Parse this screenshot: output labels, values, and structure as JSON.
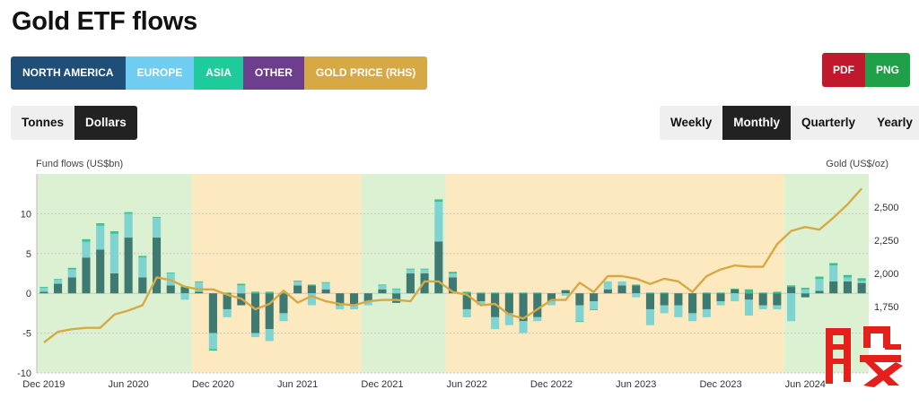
{
  "title": "Gold ETF flows",
  "legend": [
    {
      "key": "na",
      "label": "NORTH AMERICA",
      "color": "#1f4e79"
    },
    {
      "key": "eu",
      "label": "EUROPE",
      "color": "#6fcdf2"
    },
    {
      "key": "asia",
      "label": "ASIA",
      "color": "#1dcc9a"
    },
    {
      "key": "other",
      "label": "OTHER",
      "color": "#6d3d8e"
    },
    {
      "key": "gold",
      "label": "GOLD PRICE (RHS)",
      "color": "#d7a945"
    }
  ],
  "export": {
    "pdf": "PDF",
    "png": "PNG",
    "pdf_color": "#c0182c",
    "png_color": "#21a04a"
  },
  "units": {
    "tonnes": "Tonnes",
    "dollars": "Dollars",
    "active": "dollars"
  },
  "frequency": {
    "weekly": "Weekly",
    "monthly": "Monthly",
    "quarterly": "Quarterly",
    "yearly": "Yearly",
    "active": "monthly"
  },
  "axes": {
    "left_title": "Fund flows (US$bn)",
    "right_title": "Gold (US$/oz)"
  },
  "chart_data": {
    "type": "bar",
    "months": [
      "Dec 2019",
      "Jan 2020",
      "Feb 2020",
      "Mar 2020",
      "Apr 2020",
      "May 2020",
      "Jun 2020",
      "Jul 2020",
      "Aug 2020",
      "Sep 2020",
      "Oct 2020",
      "Nov 2020",
      "Dec 2020",
      "Jan 2021",
      "Feb 2021",
      "Mar 2021",
      "Apr 2021",
      "May 2021",
      "Jun 2021",
      "Jul 2021",
      "Aug 2021",
      "Sep 2021",
      "Oct 2021",
      "Nov 2021",
      "Dec 2021",
      "Jan 2022",
      "Feb 2022",
      "Mar 2022",
      "Apr 2022",
      "May 2022",
      "Jun 2022",
      "Jul 2022",
      "Aug 2022",
      "Sep 2022",
      "Oct 2022",
      "Nov 2022",
      "Dec 2022",
      "Jan 2023",
      "Feb 2023",
      "Mar 2023",
      "Apr 2023",
      "May 2023",
      "Jun 2023",
      "Jul 2023",
      "Aug 2023",
      "Sep 2023",
      "Oct 2023",
      "Nov 2023",
      "Dec 2023",
      "Jan 2024",
      "Feb 2024",
      "Mar 2024",
      "Apr 2024",
      "May 2024",
      "Jun 2024",
      "Jul 2024",
      "Aug 2024",
      "Sep 2024",
      "Oct 2024"
    ],
    "xtick_labels": [
      "Dec 2019",
      "Jun 2020",
      "Dec 2020",
      "Jun 2021",
      "Dec 2021",
      "Jun 2022",
      "Dec 2022",
      "Jun 2023",
      "Dec 2023",
      "Jun 2024"
    ],
    "series": [
      {
        "name": "NORTH AMERICA",
        "values": [
          0.2,
          1.2,
          2.0,
          4.5,
          5.5,
          2.5,
          7.0,
          2.0,
          7.0,
          1.0,
          0.8,
          0.2,
          -5.0,
          -2.0,
          -1.5,
          -5.0,
          -4.5,
          -2.5,
          1.0,
          1.0,
          0.5,
          -1.5,
          -1.5,
          -1.0,
          0.5,
          -1.2,
          2.5,
          2.5,
          6.5,
          2.0,
          -2.0,
          -1.0,
          -3.0,
          -2.5,
          -3.5,
          -3.0,
          -1.0,
          0.4,
          -1.5,
          -1.0,
          0.5,
          1.0,
          1.0,
          -2.0,
          -1.5,
          -1.5,
          -2.5,
          -2.0,
          -1.0,
          0.5,
          -0.8,
          -1.5,
          -1.5,
          0.8,
          -0.5,
          0.3,
          1.5,
          1.5,
          1.3
        ]
      },
      {
        "name": "EUROPE",
        "values": [
          0.5,
          0.5,
          1.0,
          2.0,
          3.0,
          5.0,
          3.0,
          2.5,
          2.5,
          1.5,
          -0.8,
          1.2,
          -2.0,
          -1.0,
          1.0,
          -0.5,
          -1.5,
          -1.0,
          0.5,
          -1.5,
          0.8,
          -0.5,
          -0.5,
          -0.5,
          0.5,
          0.5,
          0.5,
          0.5,
          5.0,
          0.5,
          -1.0,
          -0.5,
          -1.5,
          -1.5,
          -1.5,
          -0.5,
          -0.5,
          -0.3,
          -2.0,
          -1.0,
          1.0,
          0.5,
          -0.5,
          -2.0,
          -1.0,
          -1.5,
          -1.0,
          -1.0,
          -0.5,
          -1.0,
          -2.0,
          -0.5,
          -0.5,
          -3.5,
          0.5,
          1.5,
          2.0,
          0.5,
          0.3
        ]
      },
      {
        "name": "ASIA",
        "values": [
          0.1,
          0.1,
          0.2,
          0.3,
          0.3,
          0.3,
          0.2,
          0.2,
          0.1,
          0.1,
          0.1,
          0.1,
          -0.2,
          0.1,
          0.2,
          0.2,
          0.2,
          0.1,
          0.1,
          0.1,
          0.1,
          0.0,
          0.0,
          0.0,
          0.1,
          0.1,
          0.1,
          0.1,
          0.3,
          0.2,
          0.2,
          0.1,
          0.1,
          0.1,
          0.1,
          0.1,
          0.0,
          0.0,
          -0.1,
          -0.1,
          0.0,
          0.0,
          0.1,
          0.1,
          0.1,
          0.0,
          0.0,
          0.1,
          0.1,
          0.1,
          0.5,
          0.1,
          0.2,
          0.2,
          0.2,
          0.3,
          0.3,
          0.3,
          0.3
        ]
      },
      {
        "name": "OTHER",
        "values": [
          0,
          0,
          0,
          0,
          0,
          0,
          0,
          0,
          0,
          0,
          0,
          0,
          0,
          0,
          0,
          0,
          0,
          0,
          0,
          0,
          0,
          0,
          0,
          0,
          0,
          0,
          0,
          0,
          0,
          0,
          0,
          0,
          0,
          0,
          0,
          0,
          0,
          0,
          0,
          0,
          0,
          0,
          0,
          0,
          0,
          0,
          0,
          0,
          0,
          0,
          0,
          0,
          0,
          0,
          0,
          0,
          0,
          0,
          0
        ]
      },
      {
        "name": "GOLD PRICE (RHS)",
        "axis": "right",
        "values": [
          1480,
          1560,
          1580,
          1590,
          1590,
          1690,
          1720,
          1760,
          1970,
          1950,
          1900,
          1880,
          1880,
          1840,
          1810,
          1730,
          1770,
          1870,
          1780,
          1830,
          1790,
          1770,
          1760,
          1790,
          1800,
          1800,
          1790,
          1940,
          1940,
          1860,
          1840,
          1760,
          1770,
          1690,
          1660,
          1730,
          1800,
          1800,
          1930,
          1860,
          1980,
          1980,
          1960,
          1920,
          1960,
          1940,
          1860,
          1980,
          2030,
          2060,
          2050,
          2050,
          2220,
          2320,
          2350,
          2330,
          2420,
          2520,
          2640
        ]
      }
    ],
    "backgrounds": [
      {
        "from": "Dec 2019",
        "to": "Oct 2020",
        "color": "#dcf0d2"
      },
      {
        "from": "Nov 2020",
        "to": "Oct 2021",
        "color": "#fde9c0"
      },
      {
        "from": "Nov 2021",
        "to": "Apr 2022",
        "color": "#dcf0d2"
      },
      {
        "from": "May 2022",
        "to": "Apr 2024",
        "color": "#fde9c0"
      },
      {
        "from": "May 2024",
        "to": "Oct 2024",
        "color": "#dcf0d2"
      }
    ],
    "ylim_left": [
      -10,
      15
    ],
    "yticks_left": [
      -10,
      -5,
      0,
      5,
      10
    ],
    "ylim_right": [
      1250,
      2750
    ],
    "yticks_right": [
      1750,
      2000,
      2250,
      2500
    ],
    "grid": true,
    "legend_position": "top"
  }
}
